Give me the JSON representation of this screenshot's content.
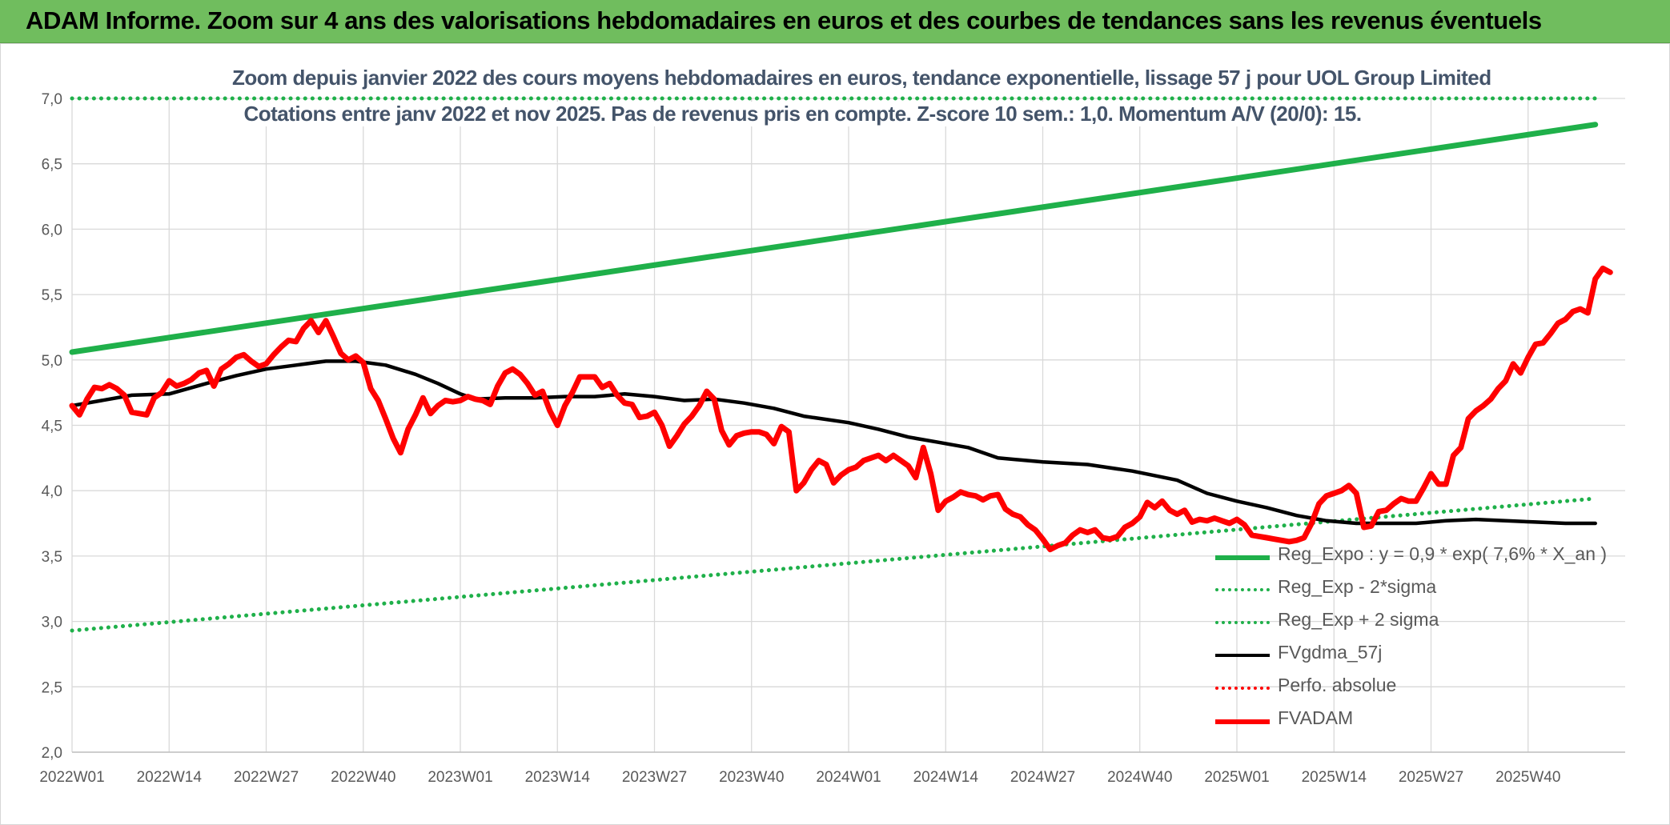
{
  "header": {
    "title": "ADAM Informe. Zoom sur 4 ans des valorisations hebdomadaires en euros et des courbes de tendances sans les revenus éventuels"
  },
  "chart_data": {
    "type": "line",
    "title": "Zoom depuis janvier 2022 des cours moyens hebdomadaires en euros, tendance exponentielle, lissage 57 j pour UOL Group Limited",
    "subtitle": "Cotations entre janv 2022 et nov 2025. Pas de revenus pris en compte. Z-score 10 sem.: 1,0. Momentum A/V (20/0): 15.",
    "xlabel": "",
    "ylabel": "",
    "ylim": [
      2.0,
      7.0
    ],
    "yticks": [
      "2,0",
      "2,5",
      "3,0",
      "3,5",
      "4,0",
      "4,5",
      "5,0",
      "5,5",
      "6,0",
      "6,5",
      "7,0"
    ],
    "xtick_labels": [
      "2022W01",
      "2022W14",
      "2022W27",
      "2022W40",
      "2023W01",
      "2023W14",
      "2023W27",
      "2023W40",
      "2024W01",
      "2024W14",
      "2024W27",
      "2024W40",
      "2025W01",
      "2025W14",
      "2025W27",
      "2025W40"
    ],
    "x_weeks": 204,
    "grid": true,
    "legend_position": "bottom-right",
    "series": [
      {
        "name": "Reg_Expo : y = 0,9 * exp( 7,6% *  X_an )",
        "color": "#1fb04a",
        "style": "solid",
        "points": [
          [
            0,
            5.06
          ],
          [
            204,
            6.8
          ]
        ]
      },
      {
        "name": "Reg_Exp - 2*sigma",
        "color": "#1fb04a",
        "style": "dotted",
        "points": [
          [
            0,
            2.93
          ],
          [
            204,
            3.94
          ]
        ]
      },
      {
        "name": "Reg_Exp + 2 sigma",
        "color": "#1fb04a",
        "style": "dotted",
        "points": [
          [
            0,
            7.0
          ],
          [
            204,
            7.0
          ]
        ]
      },
      {
        "name": "FVgdma_57j",
        "color": "#000000",
        "style": "solid",
        "points": [
          [
            0,
            4.65
          ],
          [
            8,
            4.73
          ],
          [
            13,
            4.74
          ],
          [
            18,
            4.82
          ],
          [
            22,
            4.88
          ],
          [
            26,
            4.93
          ],
          [
            30,
            4.96
          ],
          [
            34,
            4.99
          ],
          [
            38,
            4.99
          ],
          [
            42,
            4.96
          ],
          [
            46,
            4.89
          ],
          [
            49,
            4.82
          ],
          [
            52,
            4.74
          ],
          [
            54,
            4.7
          ],
          [
            58,
            4.71
          ],
          [
            62,
            4.71
          ],
          [
            66,
            4.72
          ],
          [
            70,
            4.72
          ],
          [
            74,
            4.74
          ],
          [
            78,
            4.72
          ],
          [
            82,
            4.69
          ],
          [
            86,
            4.7
          ],
          [
            90,
            4.67
          ],
          [
            94,
            4.63
          ],
          [
            98,
            4.57
          ],
          [
            104,
            4.52
          ],
          [
            108,
            4.47
          ],
          [
            112,
            4.41
          ],
          [
            116,
            4.37
          ],
          [
            120,
            4.33
          ],
          [
            124,
            4.25
          ],
          [
            130,
            4.22
          ],
          [
            136,
            4.2
          ],
          [
            142,
            4.15
          ],
          [
            148,
            4.08
          ],
          [
            152,
            3.98
          ],
          [
            156,
            3.92
          ],
          [
            160,
            3.87
          ],
          [
            164,
            3.81
          ],
          [
            168,
            3.77
          ],
          [
            172,
            3.75
          ],
          [
            176,
            3.75
          ],
          [
            180,
            3.75
          ],
          [
            184,
            3.77
          ],
          [
            188,
            3.78
          ],
          [
            192,
            3.77
          ],
          [
            196,
            3.76
          ],
          [
            200,
            3.75
          ],
          [
            204,
            3.75
          ]
        ]
      },
      {
        "name": "Perfo. absolue",
        "color": "#ff0000",
        "style": "dotted",
        "points": []
      },
      {
        "name": "FVADAM",
        "color": "#ff0000",
        "style": "solid",
        "points": [
          [
            0,
            4.65
          ],
          [
            1,
            4.58
          ],
          [
            2,
            4.7
          ],
          [
            3,
            4.79
          ],
          [
            4,
            4.78
          ],
          [
            5,
            4.81
          ],
          [
            6,
            4.78
          ],
          [
            7,
            4.73
          ],
          [
            8,
            4.6
          ],
          [
            10,
            4.58
          ],
          [
            11,
            4.71
          ],
          [
            12,
            4.75
          ],
          [
            13,
            4.84
          ],
          [
            14,
            4.8
          ],
          [
            15,
            4.82
          ],
          [
            16,
            4.85
          ],
          [
            17,
            4.9
          ],
          [
            18,
            4.92
          ],
          [
            19,
            4.8
          ],
          [
            20,
            4.93
          ],
          [
            21,
            4.97
          ],
          [
            22,
            5.02
          ],
          [
            23,
            5.04
          ],
          [
            24,
            4.99
          ],
          [
            25,
            4.95
          ],
          [
            26,
            4.97
          ],
          [
            27,
            5.04
          ],
          [
            28,
            5.1
          ],
          [
            29,
            5.15
          ],
          [
            30,
            5.14
          ],
          [
            31,
            5.24
          ],
          [
            32,
            5.3
          ],
          [
            33,
            5.21
          ],
          [
            34,
            5.3
          ],
          [
            35,
            5.18
          ],
          [
            36,
            5.05
          ],
          [
            37,
            5.0
          ],
          [
            38,
            5.03
          ],
          [
            39,
            4.98
          ],
          [
            40,
            4.78
          ],
          [
            41,
            4.69
          ],
          [
            42,
            4.55
          ],
          [
            43,
            4.4
          ],
          [
            44,
            4.29
          ],
          [
            45,
            4.47
          ],
          [
            46,
            4.58
          ],
          [
            47,
            4.71
          ],
          [
            48,
            4.59
          ],
          [
            49,
            4.65
          ],
          [
            50,
            4.69
          ],
          [
            51,
            4.68
          ],
          [
            52,
            4.69
          ],
          [
            53,
            4.72
          ],
          [
            54,
            4.7
          ],
          [
            55,
            4.69
          ],
          [
            56,
            4.66
          ],
          [
            57,
            4.8
          ],
          [
            58,
            4.9
          ],
          [
            59,
            4.93
          ],
          [
            60,
            4.89
          ],
          [
            61,
            4.82
          ],
          [
            62,
            4.73
          ],
          [
            63,
            4.76
          ],
          [
            64,
            4.61
          ],
          [
            65,
            4.5
          ],
          [
            66,
            4.65
          ],
          [
            67,
            4.75
          ],
          [
            68,
            4.87
          ],
          [
            69,
            4.87
          ],
          [
            70,
            4.87
          ],
          [
            71,
            4.79
          ],
          [
            72,
            4.82
          ],
          [
            73,
            4.73
          ],
          [
            74,
            4.67
          ],
          [
            75,
            4.66
          ],
          [
            76,
            4.56
          ],
          [
            77,
            4.57
          ],
          [
            78,
            4.6
          ],
          [
            79,
            4.5
          ],
          [
            80,
            4.34
          ],
          [
            81,
            4.42
          ],
          [
            82,
            4.51
          ],
          [
            83,
            4.57
          ],
          [
            84,
            4.65
          ],
          [
            85,
            4.76
          ],
          [
            86,
            4.7
          ],
          [
            87,
            4.46
          ],
          [
            88,
            4.35
          ],
          [
            89,
            4.42
          ],
          [
            90,
            4.44
          ],
          [
            91,
            4.45
          ],
          [
            92,
            4.45
          ],
          [
            93,
            4.43
          ],
          [
            94,
            4.36
          ],
          [
            95,
            4.49
          ],
          [
            96,
            4.45
          ],
          [
            97,
            4.0
          ],
          [
            98,
            4.06
          ],
          [
            99,
            4.16
          ],
          [
            100,
            4.23
          ],
          [
            101,
            4.2
          ],
          [
            102,
            4.06
          ],
          [
            103,
            4.12
          ],
          [
            104,
            4.16
          ],
          [
            105,
            4.18
          ],
          [
            106,
            4.23
          ],
          [
            107,
            4.25
          ],
          [
            108,
            4.27
          ],
          [
            109,
            4.23
          ],
          [
            110,
            4.27
          ],
          [
            111,
            4.23
          ],
          [
            112,
            4.19
          ],
          [
            113,
            4.1
          ],
          [
            114,
            4.33
          ],
          [
            115,
            4.13
          ],
          [
            116,
            3.85
          ],
          [
            117,
            3.92
          ],
          [
            118,
            3.95
          ],
          [
            119,
            3.99
          ],
          [
            120,
            3.97
          ],
          [
            121,
            3.96
          ],
          [
            122,
            3.93
          ],
          [
            123,
            3.96
          ],
          [
            124,
            3.97
          ],
          [
            125,
            3.86
          ],
          [
            126,
            3.82
          ],
          [
            127,
            3.8
          ],
          [
            128,
            3.74
          ],
          [
            129,
            3.7
          ],
          [
            130,
            3.63
          ],
          [
            131,
            3.55
          ],
          [
            132,
            3.58
          ],
          [
            133,
            3.6
          ],
          [
            134,
            3.66
          ],
          [
            135,
            3.7
          ],
          [
            136,
            3.68
          ],
          [
            137,
            3.7
          ],
          [
            138,
            3.64
          ],
          [
            139,
            3.63
          ],
          [
            140,
            3.65
          ],
          [
            141,
            3.72
          ],
          [
            142,
            3.75
          ],
          [
            143,
            3.8
          ],
          [
            144,
            3.91
          ],
          [
            145,
            3.87
          ],
          [
            146,
            3.92
          ],
          [
            147,
            3.85
          ],
          [
            148,
            3.82
          ],
          [
            149,
            3.85
          ],
          [
            150,
            3.76
          ],
          [
            151,
            3.78
          ],
          [
            152,
            3.77
          ],
          [
            153,
            3.79
          ],
          [
            154,
            3.77
          ],
          [
            155,
            3.75
          ],
          [
            156,
            3.78
          ],
          [
            157,
            3.74
          ],
          [
            158,
            3.66
          ],
          [
            159,
            3.65
          ],
          [
            160,
            3.64
          ],
          [
            161,
            3.63
          ],
          [
            162,
            3.62
          ],
          [
            163,
            3.61
          ],
          [
            164,
            3.62
          ],
          [
            165,
            3.64
          ],
          [
            166,
            3.75
          ],
          [
            167,
            3.9
          ],
          [
            168,
            3.96
          ],
          [
            169,
            3.98
          ],
          [
            170,
            4.0
          ],
          [
            171,
            4.04
          ],
          [
            172,
            3.98
          ],
          [
            173,
            3.72
          ],
          [
            174,
            3.73
          ],
          [
            175,
            3.84
          ],
          [
            176,
            3.85
          ],
          [
            177,
            3.9
          ],
          [
            178,
            3.94
          ],
          [
            179,
            3.92
          ],
          [
            180,
            3.92
          ],
          [
            181,
            4.02
          ],
          [
            182,
            4.13
          ],
          [
            183,
            4.05
          ],
          [
            184,
            4.05
          ],
          [
            185,
            4.27
          ],
          [
            186,
            4.33
          ],
          [
            187,
            4.55
          ],
          [
            188,
            4.61
          ],
          [
            189,
            4.65
          ],
          [
            190,
            4.7
          ],
          [
            191,
            4.78
          ],
          [
            192,
            4.84
          ],
          [
            193,
            4.97
          ],
          [
            194,
            4.9
          ],
          [
            195,
            5.02
          ],
          [
            196,
            5.12
          ],
          [
            197,
            5.13
          ],
          [
            198,
            5.2
          ],
          [
            199,
            5.28
          ],
          [
            200,
            5.31
          ],
          [
            201,
            5.37
          ],
          [
            202,
            5.39
          ],
          [
            203,
            5.36
          ],
          [
            204,
            5.62
          ],
          [
            205,
            5.7
          ],
          [
            206,
            5.67
          ]
        ]
      }
    ]
  }
}
